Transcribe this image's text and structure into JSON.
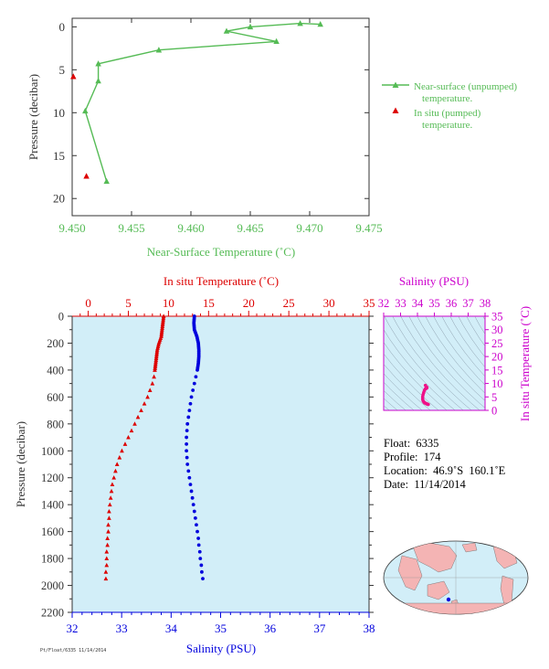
{
  "colors": {
    "green": "#55bb55",
    "red": "#dd0000",
    "blue": "#0000dd",
    "magenta": "#cc00cc",
    "pink": "#ee1188",
    "axis": "#333333",
    "panel": "#d2eef8",
    "land": "#f4b4b4",
    "ocean": "#d2eef8"
  },
  "chart_data": [
    {
      "type": "line",
      "xlabel": "Near-Surface Temperature (˚C)",
      "ylabel": "Pressure (decibar)",
      "xlim": [
        9.45,
        9.475
      ],
      "ylim": [
        22,
        -1
      ],
      "x_ticks": [
        "9.450",
        "9.455",
        "9.460",
        "9.465",
        "9.470",
        "9.475"
      ],
      "x_tick_values": [
        9.45,
        9.455,
        9.46,
        9.465,
        9.47,
        9.475
      ],
      "y_ticks": [
        "0",
        "5",
        "10",
        "15",
        "20"
      ],
      "y_tick_values": [
        0,
        5,
        10,
        15,
        20
      ],
      "legend_position": "right",
      "series": [
        {
          "name": "Near-surface (unpumped) temperature.",
          "marker": "triangle",
          "color": "#55bb55",
          "points": [
            [
              9.4709,
              -0.3
            ],
            [
              9.4692,
              -0.4
            ],
            [
              9.465,
              0.0
            ],
            [
              9.463,
              0.5
            ],
            [
              9.4672,
              1.7
            ],
            [
              9.4573,
              2.7
            ],
            [
              9.4522,
              4.3
            ],
            [
              9.4522,
              6.3
            ],
            [
              9.4511,
              9.8
            ],
            [
              9.4529,
              18.0
            ]
          ]
        },
        {
          "name": "In situ (pumped) temperature.",
          "marker": "triangle",
          "color": "#dd0000",
          "points": [
            [
              9.4501,
              5.8
            ],
            [
              9.4512,
              17.4
            ]
          ]
        }
      ]
    },
    {
      "type": "scatter",
      "ylabel": "Pressure (decibar)",
      "ylim": [
        2200,
        0
      ],
      "y_ticks": [
        "0",
        "200",
        "400",
        "600",
        "800",
        "1000",
        "1200",
        "1400",
        "1600",
        "1800",
        "2000",
        "2200"
      ],
      "y_tick_values": [
        0,
        200,
        400,
        600,
        800,
        1000,
        1200,
        1400,
        1600,
        1800,
        2000,
        2200
      ],
      "top_axis": {
        "label": "In situ Temperature (˚C)",
        "lim": [
          -2,
          35
        ],
        "ticks": [
          "0",
          "5",
          "10",
          "15",
          "20",
          "25",
          "30",
          "35"
        ],
        "tick_values": [
          0,
          5,
          10,
          15,
          20,
          25,
          30,
          35
        ]
      },
      "bottom_axis": {
        "label": "Salinity (PSU)",
        "lim": [
          32,
          38
        ],
        "ticks": [
          "32",
          "33",
          "34",
          "35",
          "36",
          "37",
          "38"
        ],
        "tick_values": [
          32,
          33,
          34,
          35,
          36,
          37,
          38
        ]
      },
      "temperature_profile": [
        [
          9.4,
          0
        ],
        [
          9.3,
          50
        ],
        [
          9.2,
          100
        ],
        [
          9.1,
          150
        ],
        [
          8.8,
          200
        ],
        [
          8.6,
          250
        ],
        [
          8.5,
          300
        ],
        [
          8.4,
          350
        ],
        [
          8.3,
          400
        ],
        [
          8.2,
          450
        ],
        [
          8.0,
          500
        ],
        [
          7.7,
          550
        ],
        [
          7.4,
          600
        ],
        [
          7.0,
          650
        ],
        [
          6.6,
          700
        ],
        [
          6.2,
          750
        ],
        [
          5.8,
          800
        ],
        [
          5.4,
          850
        ],
        [
          5.0,
          900
        ],
        [
          4.6,
          950
        ],
        [
          4.2,
          1000
        ],
        [
          3.9,
          1050
        ],
        [
          3.6,
          1100
        ],
        [
          3.4,
          1150
        ],
        [
          3.2,
          1200
        ],
        [
          3.0,
          1250
        ],
        [
          2.9,
          1300
        ],
        [
          2.8,
          1350
        ],
        [
          2.7,
          1400
        ],
        [
          2.6,
          1450
        ],
        [
          2.6,
          1500
        ],
        [
          2.5,
          1550
        ],
        [
          2.5,
          1600
        ],
        [
          2.4,
          1650
        ],
        [
          2.4,
          1700
        ],
        [
          2.3,
          1750
        ],
        [
          2.3,
          1800
        ],
        [
          2.3,
          1850
        ],
        [
          2.2,
          1900
        ],
        [
          2.2,
          1950
        ]
      ],
      "salinity_profile": [
        [
          34.47,
          0
        ],
        [
          34.46,
          50
        ],
        [
          34.47,
          100
        ],
        [
          34.52,
          150
        ],
        [
          34.55,
          200
        ],
        [
          34.56,
          250
        ],
        [
          34.56,
          300
        ],
        [
          34.55,
          350
        ],
        [
          34.53,
          400
        ],
        [
          34.5,
          450
        ],
        [
          34.47,
          500
        ],
        [
          34.44,
          550
        ],
        [
          34.41,
          600
        ],
        [
          34.39,
          650
        ],
        [
          34.37,
          700
        ],
        [
          34.35,
          750
        ],
        [
          34.33,
          800
        ],
        [
          34.32,
          850
        ],
        [
          34.31,
          900
        ],
        [
          34.31,
          950
        ],
        [
          34.31,
          1000
        ],
        [
          34.32,
          1050
        ],
        [
          34.33,
          1100
        ],
        [
          34.35,
          1150
        ],
        [
          34.37,
          1200
        ],
        [
          34.39,
          1250
        ],
        [
          34.41,
          1300
        ],
        [
          34.43,
          1350
        ],
        [
          34.45,
          1400
        ],
        [
          34.47,
          1450
        ],
        [
          34.49,
          1500
        ],
        [
          34.51,
          1550
        ],
        [
          34.53,
          1600
        ],
        [
          34.55,
          1650
        ],
        [
          34.56,
          1700
        ],
        [
          34.58,
          1750
        ],
        [
          34.59,
          1800
        ],
        [
          34.61,
          1850
        ],
        [
          34.62,
          1900
        ],
        [
          34.64,
          1950
        ]
      ]
    },
    {
      "type": "scatter",
      "xlabel": "Salinity (PSU)",
      "ylabel": "In situ Temperature (˚C)",
      "xlim": [
        32,
        38
      ],
      "ylim": [
        0,
        35
      ],
      "x_ticks": [
        "32",
        "33",
        "34",
        "35",
        "36",
        "37",
        "38"
      ],
      "x_tick_values": [
        32,
        33,
        34,
        35,
        36,
        37,
        38
      ],
      "y_ticks": [
        "0",
        "5",
        "10",
        "15",
        "20",
        "25",
        "30",
        "35"
      ],
      "y_tick_values": [
        0,
        5,
        10,
        15,
        20,
        25,
        30,
        35
      ],
      "points": [
        [
          34.47,
          9.3
        ],
        [
          34.55,
          8.6
        ],
        [
          34.56,
          8.4
        ],
        [
          34.53,
          8.2
        ],
        [
          34.47,
          8.0
        ],
        [
          34.41,
          7.4
        ],
        [
          34.37,
          6.6
        ],
        [
          34.33,
          5.8
        ],
        [
          34.31,
          5.0
        ],
        [
          34.31,
          4.2
        ],
        [
          34.33,
          3.6
        ],
        [
          34.37,
          3.2
        ],
        [
          34.41,
          2.9
        ],
        [
          34.45,
          2.7
        ],
        [
          34.49,
          2.6
        ],
        [
          34.53,
          2.5
        ],
        [
          34.56,
          2.4
        ],
        [
          34.59,
          2.3
        ],
        [
          34.62,
          2.2
        ],
        [
          34.64,
          2.2
        ]
      ]
    }
  ],
  "float_info": {
    "float": "Float:  6335",
    "profile": "Profile:  174",
    "location": "Location:  46.9˚S  160.1˚E",
    "date": "Date:  11/14/2014"
  },
  "map": {
    "location_lat": -46.9,
    "location_lon": 160.1
  },
  "footer_code": "Pt/Float/6335 11/14/2014"
}
